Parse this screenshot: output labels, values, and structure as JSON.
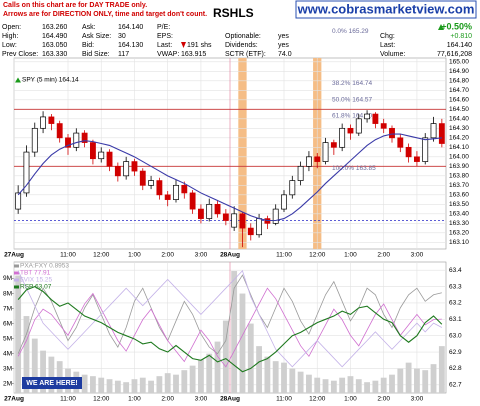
{
  "header": {
    "notes": [
      "Calls on this chart are for DAY TRADE only.",
      "Arrows are for DIRECTION ONLY, time and target don't count."
    ],
    "website": "www.cobrasmarketview.com",
    "quote": [
      [
        [
          "Open:",
          "163.260"
        ],
        [
          "High:",
          "164.490"
        ],
        [
          "Low:",
          "163.050"
        ],
        [
          "Prev Close:",
          "163.330"
        ]
      ],
      [
        [
          "Ask:",
          "164.140"
        ],
        [
          "Ask Size:",
          "30"
        ],
        [
          "Bid:",
          "164.130"
        ],
        [
          "Bid Size:",
          "117"
        ]
      ],
      [
        [
          "P/E:"
        ],
        [
          "EPS:"
        ],
        [
          "Last:",
          "191 shs"
        ],
        [
          "VWAP:",
          "163.915"
        ]
      ],
      [
        [
          "Optionable:",
          "yes"
        ],
        [
          "Dividends:",
          "yes"
        ],
        [
          "SCTR (ETF):",
          "74.0"
        ]
      ],
      [
        [
          "+0.50%"
        ],
        [
          "Chg:",
          "+0.810"
        ],
        [
          "Last:",
          "164.140"
        ],
        [
          "Volume:",
          "77,616,208"
        ]
      ]
    ]
  },
  "chart_data": [
    {
      "type": "candlestick",
      "title": "RSHLS",
      "categories": [
        "27Aug",
        null,
        null,
        null,
        null,
        null,
        "11:00",
        null,
        null,
        null,
        "12:00",
        null,
        null,
        null,
        "1:00",
        null,
        null,
        null,
        "2:00",
        null,
        null,
        null,
        "3:00",
        null,
        null,
        null,
        "28Aug",
        null,
        null,
        null,
        null,
        null,
        "11:00",
        null,
        null,
        null,
        "12:00",
        null,
        null,
        null,
        "1:00",
        null,
        null,
        null,
        "2:00",
        null,
        null,
        null,
        "3:00",
        null,
        null,
        null
      ],
      "ylim": [
        163.03,
        165.04
      ],
      "yticks": [
        {
          "value": 163.1,
          "label": "163.10"
        },
        {
          "value": 163.2,
          "label": "163.20"
        },
        {
          "value": 163.3,
          "label": "163.30"
        },
        {
          "value": 163.4,
          "label": "163.40"
        },
        {
          "value": 163.5,
          "label": "163.50"
        },
        {
          "value": 163.6,
          "label": "163.60"
        },
        {
          "value": 163.7,
          "label": "163.70"
        },
        {
          "value": 163.8,
          "label": "163.80"
        },
        {
          "value": 163.9,
          "label": "163.90"
        },
        {
          "value": 164.0,
          "label": "164.00"
        },
        {
          "value": 164.1,
          "label": "164.10"
        },
        {
          "value": 164.2,
          "label": "164.20"
        },
        {
          "value": 164.3,
          "label": "164.30"
        },
        {
          "value": 164.4,
          "label": "164.40"
        },
        {
          "value": 164.5,
          "label": "164.50"
        },
        {
          "value": 164.6,
          "label": "164.60"
        },
        {
          "value": 164.7,
          "label": "164.70"
        },
        {
          "value": 164.8,
          "label": "164.80"
        },
        {
          "value": 164.9,
          "label": "164.90"
        },
        {
          "value": 165.0,
          "label": "165.00"
        }
      ],
      "grid": true,
      "highlights": [
        27,
        36
      ],
      "highlight_color": "#f5bd86",
      "levels": [
        {
          "value": 164.5,
          "color": "#c83232"
        },
        {
          "value": 163.9,
          "color": "#c83232"
        },
        {
          "value": 163.33,
          "color": "#2828c8",
          "dash": true
        }
      ],
      "fib": [
        {
          "label": "0.0% 165.29",
          "value": 165.29
        },
        {
          "label": "38.2% 164.74",
          "value": 164.74
        },
        {
          "label": "50.0% 164.57",
          "value": 164.57
        },
        {
          "label": "61.8% 164.40",
          "value": 164.4
        },
        {
          "label": "100.0% 163.85",
          "value": 163.85
        }
      ],
      "series": [
        {
          "name": "SPY (5 min) 164.14",
          "type": "candlestick",
          "up_color": "#000000",
          "down_color": "#d00000",
          "open": [
            163.45,
            163.62,
            164.05,
            164.3,
            164.42,
            164.35,
            164.2,
            164.1,
            164.25,
            164.15,
            163.98,
            164.05,
            163.9,
            163.8,
            163.95,
            163.85,
            163.7,
            163.75,
            163.6,
            163.55,
            163.7,
            163.62,
            163.45,
            163.35,
            163.5,
            163.4,
            163.26,
            163.4,
            163.25,
            163.18,
            163.35,
            163.3,
            163.45,
            163.6,
            163.75,
            163.9,
            164.0,
            163.95,
            164.15,
            164.1,
            164.3,
            164.25,
            164.4,
            164.45,
            164.35,
            164.3,
            164.2,
            164.1,
            164.0,
            163.95,
            164.2,
            164.35
          ],
          "high": [
            163.7,
            164.12,
            164.36,
            164.48,
            164.45,
            164.38,
            164.24,
            164.3,
            164.28,
            164.18,
            164.1,
            164.08,
            163.94,
            164.0,
            163.98,
            163.88,
            163.8,
            163.78,
            163.64,
            163.76,
            163.74,
            163.65,
            163.5,
            163.56,
            163.54,
            163.45,
            163.48,
            163.42,
            163.3,
            163.4,
            163.38,
            163.5,
            163.65,
            163.8,
            163.95,
            164.06,
            164.04,
            164.2,
            164.18,
            164.35,
            164.34,
            164.45,
            164.49,
            164.47,
            164.4,
            164.33,
            164.24,
            164.14,
            164.06,
            164.25,
            164.42,
            164.4
          ],
          "low": [
            163.4,
            163.58,
            164.0,
            164.25,
            164.28,
            164.15,
            164.02,
            164.06,
            164.1,
            163.92,
            163.94,
            163.85,
            163.74,
            163.76,
            163.8,
            163.65,
            163.66,
            163.55,
            163.48,
            163.52,
            163.56,
            163.4,
            163.3,
            163.32,
            163.36,
            163.28,
            163.22,
            163.05,
            163.12,
            163.15,
            163.24,
            163.28,
            163.42,
            163.56,
            163.7,
            163.85,
            163.88,
            163.92,
            164.02,
            164.06,
            164.18,
            164.22,
            164.36,
            164.3,
            164.25,
            164.15,
            164.05,
            163.94,
            163.9,
            163.92,
            164.16,
            164.1
          ],
          "close": [
            163.62,
            164.05,
            164.3,
            164.42,
            164.35,
            164.2,
            164.1,
            164.25,
            164.15,
            163.98,
            164.05,
            163.9,
            163.8,
            163.95,
            163.85,
            163.7,
            163.75,
            163.6,
            163.55,
            163.7,
            163.62,
            163.45,
            163.35,
            163.5,
            163.4,
            163.33,
            163.4,
            163.25,
            163.18,
            163.35,
            163.3,
            163.45,
            163.6,
            163.75,
            163.9,
            164.0,
            163.95,
            164.15,
            164.1,
            164.3,
            164.25,
            164.4,
            164.45,
            164.35,
            164.3,
            164.2,
            164.1,
            164.0,
            163.95,
            164.2,
            164.35,
            164.14
          ]
        },
        {
          "type": "line",
          "color": "#3a3aa8",
          "values": [
            163.6,
            163.7,
            163.82,
            163.93,
            164.02,
            164.08,
            164.12,
            164.15,
            164.17,
            164.16,
            164.14,
            164.12,
            164.08,
            164.04,
            164.0,
            163.95,
            163.9,
            163.85,
            163.8,
            163.76,
            163.72,
            163.67,
            163.62,
            163.58,
            163.54,
            163.5,
            163.46,
            163.42,
            163.38,
            163.35,
            163.33,
            163.33,
            163.35,
            163.4,
            163.47,
            163.55,
            163.63,
            163.72,
            163.8,
            163.88,
            163.96,
            164.04,
            164.12,
            164.18,
            164.22,
            164.24,
            164.24,
            164.22,
            164.2,
            164.18,
            164.19,
            164.2
          ]
        }
      ]
    },
    {
      "type": "line",
      "annotation": "WE ARE HERE!",
      "categories": [
        "27Aug",
        null,
        null,
        null,
        null,
        null,
        "11:00",
        null,
        null,
        null,
        "12:00",
        null,
        null,
        null,
        "1:00",
        null,
        null,
        null,
        "2:00",
        null,
        null,
        null,
        "3:00",
        null,
        null,
        null,
        "28Aug",
        null,
        null,
        null,
        null,
        null,
        "11:00",
        null,
        null,
        null,
        "12:00",
        null,
        null,
        null,
        "1:00",
        null,
        null,
        null,
        "2:00",
        null,
        null,
        null,
        "3:00",
        null,
        null,
        null
      ],
      "ylim": [
        62.65,
        63.45
      ],
      "yticks": [
        62.7,
        62.8,
        62.9,
        {
          "value": 63.0,
          "label": "63.0"
        },
        63.1,
        63.2,
        63.3,
        63.4
      ],
      "y2lim": [
        1380000,
        10100000
      ],
      "y2ticks": [
        {
          "value": 2000000,
          "label": "2M"
        },
        {
          "value": 3000000,
          "label": "3M"
        },
        {
          "value": 4000000,
          "label": "4M"
        },
        {
          "value": 5000000,
          "label": "5M"
        },
        {
          "value": 6000000,
          "label": "6M"
        },
        {
          "value": 7000000,
          "label": "7M"
        },
        {
          "value": 8000000,
          "label": "8M"
        },
        {
          "value": 9000000,
          "label": "9M"
        }
      ],
      "grid": true,
      "series": [
        {
          "type": "bar",
          "axis": "y2",
          "color": "#cfcfcf",
          "values": [
            9200000,
            6500000,
            5000000,
            4200000,
            3800000,
            3500000,
            3000000,
            2800000,
            2600000,
            2500000,
            2400000,
            2300000,
            2200000,
            2100000,
            2300000,
            2400000,
            2200000,
            2500000,
            2700000,
            2600000,
            2900000,
            3200000,
            3600000,
            4000000,
            4800000,
            6200000,
            9500000,
            8000000,
            6000000,
            4500000,
            3800000,
            3500000,
            3400000,
            3000000,
            2800000,
            2600000,
            2400000,
            2300000,
            2200000,
            2400000,
            2500000,
            2300000,
            2100000,
            2200000,
            2400000,
            2600000,
            3000000,
            3400000,
            3000000,
            2900000,
            3300000,
            4500000
          ]
        },
        {
          "name": "PXA:FXY 0.8953",
          "color": "#9a9a9a",
          "ylim": [
            0.88,
            0.9
          ],
          "values": [
            0.886,
            0.889,
            0.893,
            0.896,
            0.894,
            0.891,
            0.888,
            0.89,
            0.893,
            0.895,
            0.892,
            0.889,
            0.887,
            0.89,
            0.894,
            0.896,
            0.893,
            0.89,
            0.888,
            0.891,
            0.894,
            0.892,
            0.889,
            0.887,
            0.886,
            0.888,
            0.896,
            0.898,
            0.895,
            0.892,
            0.89,
            0.893,
            0.896,
            0.894,
            0.891,
            0.889,
            0.892,
            0.895,
            0.897,
            0.894,
            0.891,
            0.893,
            0.896,
            0.895,
            0.892,
            0.89,
            0.893,
            0.895,
            0.896,
            0.894,
            0.895,
            0.8953
          ]
        },
        {
          "name": "TBT 77.91",
          "color": "#d070d0",
          "ylim": [
            76.5,
            79.0
          ],
          "values": [
            77.2,
            77.5,
            77.9,
            78.1,
            78.0,
            77.8,
            77.6,
            77.9,
            78.2,
            78.4,
            78.1,
            77.8,
            77.5,
            77.3,
            77.6,
            77.9,
            78.1,
            77.8,
            77.5,
            77.3,
            77.1,
            77.4,
            77.7,
            77.5,
            77.2,
            77.0,
            77.3,
            77.6,
            77.9,
            78.2,
            78.5,
            78.3,
            78.0,
            77.7,
            77.4,
            77.2,
            77.5,
            77.8,
            78.1,
            77.9,
            77.6,
            77.4,
            77.7,
            78.0,
            78.2,
            77.9,
            77.6,
            77.8,
            78.0,
            77.8,
            77.9,
            77.91
          ]
        },
        {
          "name": "$VIX 15.25",
          "color": "#c4b2e8",
          "ylim": [
            14.5,
            16.0
          ],
          "values": [
            15.9,
            15.7,
            15.5,
            15.3,
            15.2,
            15.1,
            15.0,
            15.1,
            15.2,
            15.3,
            15.4,
            15.5,
            15.6,
            15.7,
            15.6,
            15.5,
            15.6,
            15.7,
            15.8,
            15.7,
            15.6,
            15.5,
            15.4,
            15.5,
            15.6,
            15.7,
            15.8,
            15.9,
            15.6,
            15.4,
            15.2,
            15.0,
            14.9,
            14.8,
            14.9,
            15.0,
            15.1,
            15.0,
            14.9,
            14.8,
            14.9,
            15.0,
            15.1,
            15.2,
            15.1,
            15.0,
            15.1,
            15.2,
            15.3,
            15.2,
            15.3,
            15.25
          ]
        },
        {
          "name": "RSP 63.07",
          "color": "#1f7a1f",
          "values": [
            63.22,
            63.28,
            63.3,
            63.27,
            63.22,
            63.18,
            63.2,
            63.16,
            63.12,
            63.1,
            63.08,
            63.05,
            63.02,
            63.0,
            62.98,
            62.95,
            62.96,
            62.92,
            62.9,
            62.94,
            62.9,
            62.86,
            62.85,
            62.88,
            62.84,
            62.86,
            62.82,
            62.78,
            62.8,
            62.84,
            62.86,
            62.9,
            62.95,
            63.0,
            63.02,
            63.05,
            63.08,
            63.1,
            63.12,
            63.15,
            63.13,
            63.17,
            63.18,
            63.14,
            63.1,
            63.08,
            63.0,
            62.96,
            63.0,
            63.08,
            63.12,
            63.07
          ]
        }
      ]
    }
  ]
}
